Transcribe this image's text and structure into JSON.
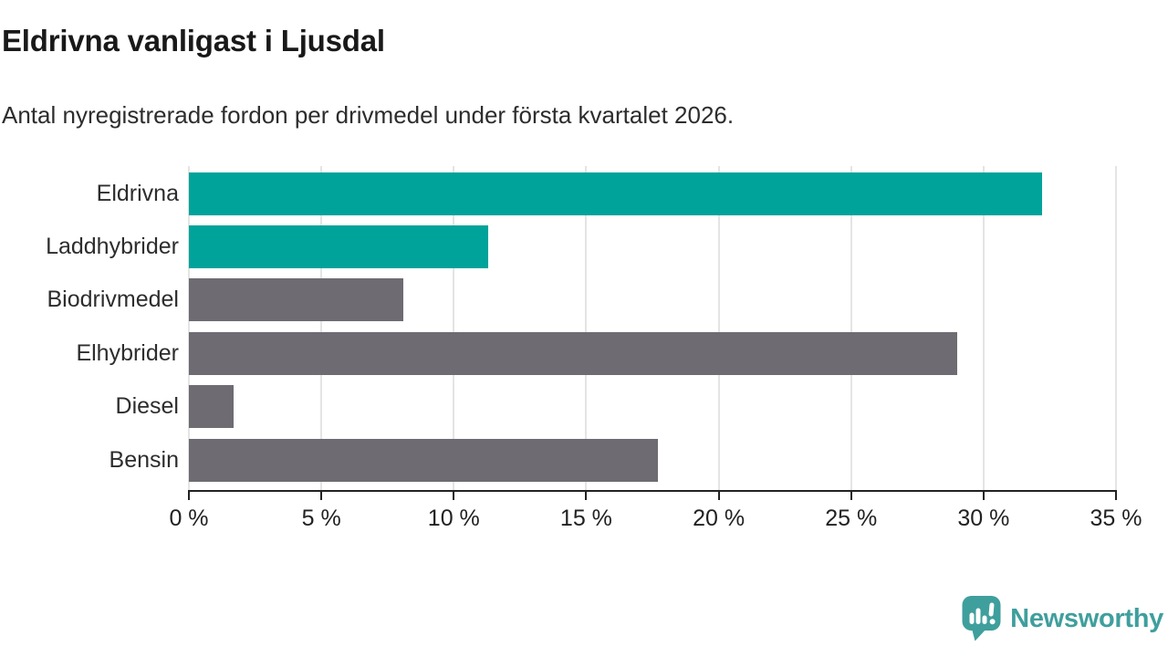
{
  "header": {
    "title": "Eldrivna vanligast i Ljusdal",
    "subtitle": "Antal nyregistrerade fordon per drivmedel under första kvartalet 2026."
  },
  "chart_data": {
    "type": "bar",
    "orientation": "horizontal",
    "title": "Eldrivna vanligast i Ljusdal",
    "subtitle": "Antal nyregistrerade fordon per drivmedel under första kvartalet 2026.",
    "categories": [
      "Eldrivna",
      "Laddhybrider",
      "Biodrivmedel",
      "Elhybrider",
      "Diesel",
      "Bensin"
    ],
    "values": [
      32.2,
      11.3,
      8.1,
      29.0,
      1.7,
      17.7
    ],
    "unit": "%",
    "xlim": [
      0,
      35
    ],
    "xticks": [
      0,
      5,
      10,
      15,
      20,
      25,
      30,
      35
    ],
    "xtick_labels": [
      "0 %",
      "5 %",
      "10 %",
      "15 %",
      "20 %",
      "25 %",
      "30 %",
      "35 %"
    ],
    "bar_colors": [
      "#00a39a",
      "#00a39a",
      "#6e6b72",
      "#6e6b72",
      "#6e6b72",
      "#6e6b72"
    ],
    "highlight_color": "#00a39a",
    "default_color": "#6e6b72",
    "grid": true,
    "gridline_color": "#e4e4e4",
    "axis_color": "#222222",
    "legend": "none"
  },
  "footer": {
    "brand": "Newsworthy",
    "brand_color": "#3f9f9d",
    "logo_icon": "newsworthy-speech-bubble-barchart-icon"
  }
}
